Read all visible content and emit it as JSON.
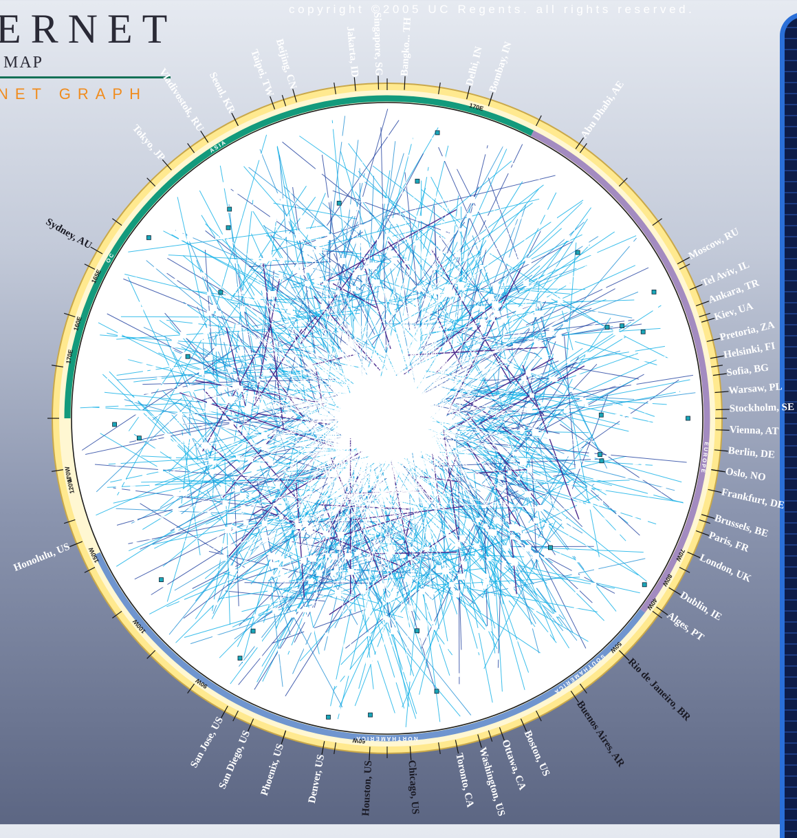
{
  "header": {
    "copyright": "copyright ©2005 UC Regents. all rights reserved.",
    "title_main": "ERNET",
    "title_sub": "MAP",
    "title_graph": "NET GRAPH"
  },
  "colors": {
    "asia_band": "#139a7c",
    "europe_band": "#a38bc0",
    "america_band": "#6f95cf",
    "outer_ring": "#ffe98f",
    "edge_light": "#0aaee6",
    "edge_dark": "#1d3d9e",
    "edge_purple": "#4b2a8c",
    "core_edges": "#ffffff"
  },
  "cities": [
    {
      "name": "Bangko... TH",
      "dark": false
    },
    {
      "name": "Singapore, SG",
      "dark": false
    },
    {
      "name": "Jakarta, ID",
      "dark": false
    },
    {
      "name": "Beijing, CN",
      "dark": false
    },
    {
      "name": "Taipei, TW",
      "dark": false
    },
    {
      "name": "Seoul, KR",
      "dark": false
    },
    {
      "name": "Vladivostok, RU",
      "dark": false
    },
    {
      "name": "Tokyo, JP",
      "dark": false
    },
    {
      "name": "Sydney, AU",
      "dark": true
    },
    {
      "name": "Delhi, IN",
      "dark": false
    },
    {
      "name": "Bombay, IN",
      "dark": false
    },
    {
      "name": "Abu Dhabi, AE",
      "dark": false
    },
    {
      "name": "Moscow, RU",
      "dark": false
    },
    {
      "name": "Tel Aviv, IL",
      "dark": false
    },
    {
      "name": "Ankara, TR",
      "dark": false
    },
    {
      "name": "Kiev, UA",
      "dark": false
    },
    {
      "name": "Pretoria, ZA",
      "dark": false
    },
    {
      "name": "Helsinki, FI",
      "dark": false
    },
    {
      "name": "Sofia, BG",
      "dark": false
    },
    {
      "name": "Warsaw, PL",
      "dark": false
    },
    {
      "name": "Stockholm, SE",
      "dark": false
    },
    {
      "name": "Vienna, AT",
      "dark": false
    },
    {
      "name": "Berlin, DE",
      "dark": false
    },
    {
      "name": "Oslo, NO",
      "dark": false
    },
    {
      "name": "Frankfurt, DE",
      "dark": false
    },
    {
      "name": "Brussels, BE",
      "dark": false
    },
    {
      "name": "Paris, FR",
      "dark": false
    },
    {
      "name": "London, UK",
      "dark": false
    },
    {
      "name": "Dublin, IE",
      "dark": false
    },
    {
      "name": "Alges, PT",
      "dark": false
    },
    {
      "name": "Rio de Janeiro, BR",
      "dark": true
    },
    {
      "name": "Buenos Aires, AR",
      "dark": true
    },
    {
      "name": "Boston, US",
      "dark": false
    },
    {
      "name": "Ottawa, CA",
      "dark": false
    },
    {
      "name": "Washington, US",
      "dark": false
    },
    {
      "name": "Toronto, CA",
      "dark": false
    },
    {
      "name": "Chicago, US",
      "dark": true
    },
    {
      "name": "Houston, US",
      "dark": true
    },
    {
      "name": "Denver, US",
      "dark": false
    },
    {
      "name": "Phoenix, US",
      "dark": false
    },
    {
      "name": "San Diego, US",
      "dark": false
    },
    {
      "name": "San Jose, US",
      "dark": false
    },
    {
      "name": "Honolulu, US",
      "dark": false
    }
  ],
  "degree_labels": [
    "170E",
    "165E",
    "160E",
    "170W",
    "170E",
    "120W",
    "150W",
    "100W",
    "90W",
    "60W",
    "50W",
    "40W",
    "80W",
    "70W"
  ],
  "region_letters": {
    "asia": "A S I A",
    "oceania": "O C",
    "europe": "E U R O P E",
    "south_america": "S O U T H   A M E R I C A",
    "north_america": "N O R T H   A M E R I C A"
  }
}
